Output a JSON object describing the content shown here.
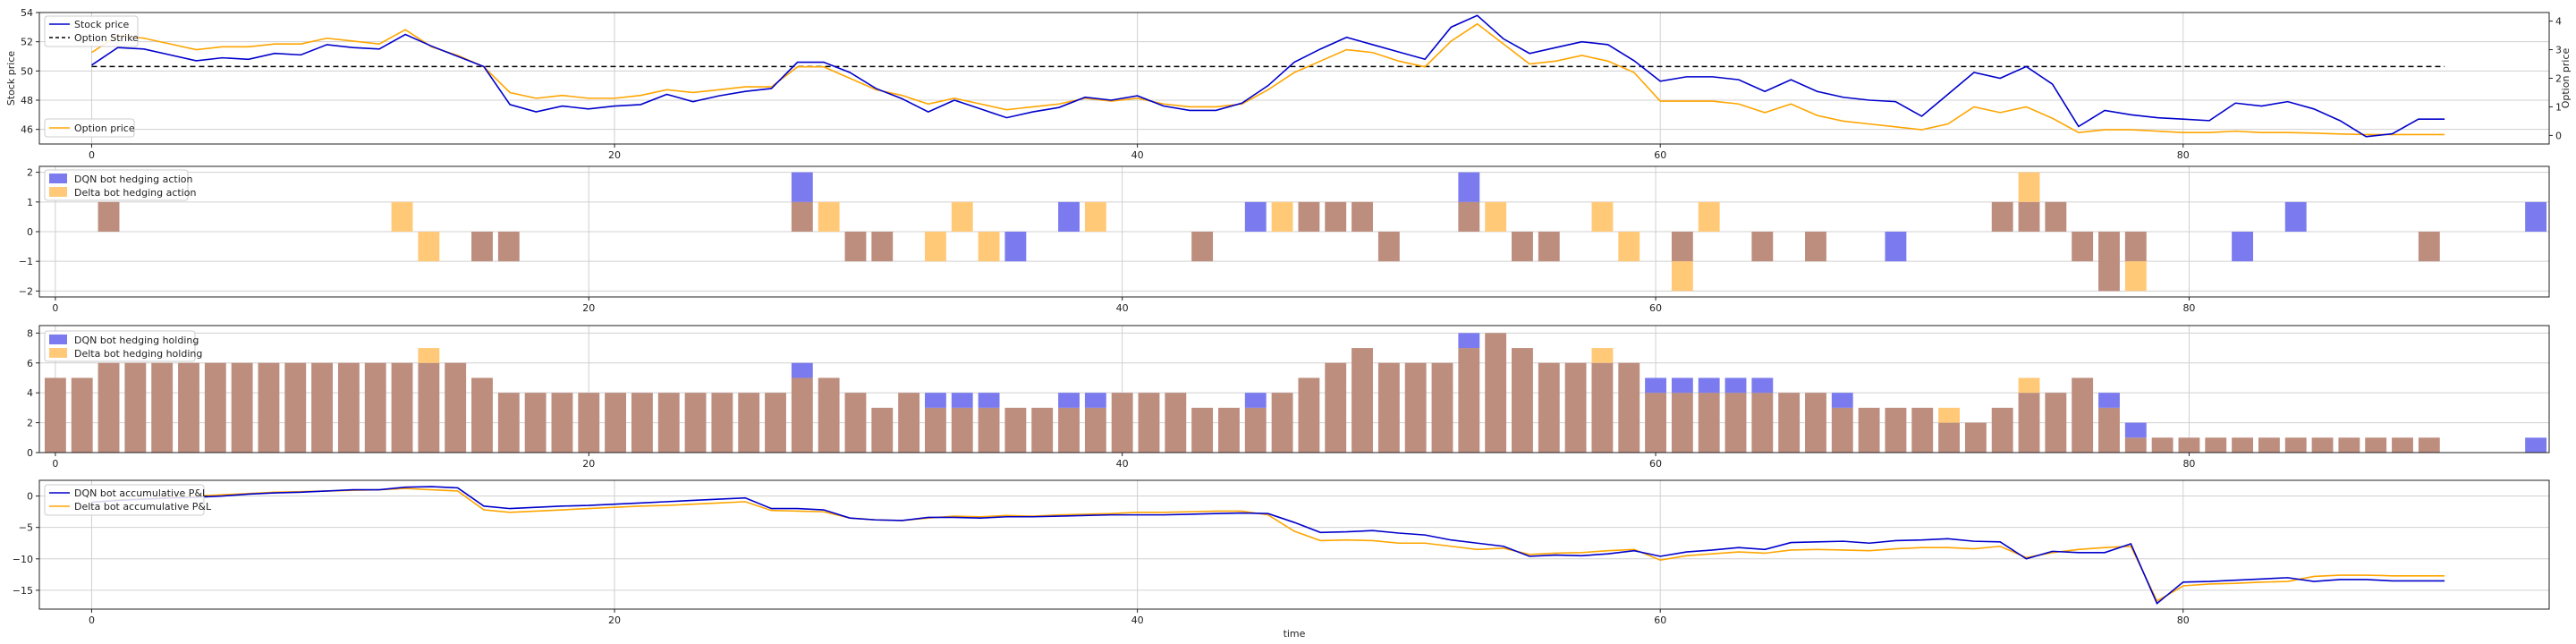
{
  "colors": {
    "dqn": "#0000cc",
    "delta": "#ffa500",
    "dqn_bar": "#7b7bef",
    "delta_bar": "#ffc978",
    "overlap_bar": "#bd8d7d",
    "strike": "#000000",
    "grid": "#d0d0d0"
  },
  "chart_data": [
    {
      "type": "line",
      "xlim": [
        -2,
        94
      ],
      "ylim": [
        45,
        54
      ],
      "y2lim": [
        -0.3,
        4.3
      ],
      "xticks": [
        0,
        20,
        40,
        60,
        80
      ],
      "yticks": [
        46,
        48,
        50,
        52,
        54
      ],
      "y2ticks": [
        0,
        1,
        2,
        3,
        4
      ],
      "xtick_labels": [
        "0",
        "20",
        "40",
        "60",
        "80"
      ],
      "ytick_labels": [
        "46",
        "48",
        "50",
        "52",
        "54"
      ],
      "y2tick_labels": [
        "0",
        "1",
        "2",
        "3",
        "4"
      ],
      "ylabel": "Stock price",
      "y2label": "Option price",
      "grid": true,
      "strike": 50.3,
      "x": [
        0,
        1,
        2,
        3,
        4,
        5,
        6,
        7,
        8,
        9,
        10,
        11,
        12,
        13,
        14,
        15,
        16,
        17,
        18,
        19,
        20,
        21,
        22,
        23,
        24,
        25,
        26,
        27,
        28,
        29,
        30,
        31,
        32,
        33,
        34,
        35,
        36,
        37,
        38,
        39,
        40,
        41,
        42,
        43,
        44,
        45,
        46,
        47,
        48,
        49,
        50,
        51,
        52,
        53,
        54,
        55,
        56,
        57,
        58,
        59,
        60,
        61,
        62,
        63,
        64,
        65,
        66,
        67,
        68,
        69,
        70,
        71,
        72,
        73,
        74,
        75,
        76,
        77,
        78,
        79,
        80,
        81,
        82,
        83,
        84,
        85,
        86,
        87,
        88,
        89,
        90
      ],
      "stock": [
        50.4,
        51.6,
        51.5,
        51.1,
        50.7,
        50.9,
        50.8,
        51.2,
        51.1,
        51.8,
        51.6,
        51.5,
        52.5,
        51.7,
        51.0,
        50.3,
        47.7,
        47.2,
        47.6,
        47.4,
        47.6,
        47.7,
        48.4,
        47.9,
        48.3,
        48.6,
        48.8,
        50.6,
        50.6,
        49.9,
        48.8,
        48.1,
        47.2,
        48.0,
        47.4,
        46.8,
        47.2,
        47.5,
        48.2,
        48.0,
        48.3,
        47.6,
        47.3,
        47.3,
        47.8,
        49.0,
        50.6,
        51.5,
        52.3,
        51.8,
        51.3,
        50.8,
        53.0,
        53.8,
        52.2,
        51.2,
        51.6,
        52.0,
        51.8,
        50.7,
        49.3,
        49.6,
        49.6,
        49.4,
        48.6,
        49.4,
        48.6,
        48.2,
        48.0,
        47.9,
        46.9,
        48.4,
        49.9,
        49.5,
        50.3,
        49.1,
        46.2,
        47.3,
        47.0,
        46.8,
        46.7,
        46.6,
        47.8,
        47.6,
        47.9,
        47.4,
        46.6,
        45.5,
        45.7,
        46.7,
        46.7
      ],
      "option": [
        2.9,
        3.5,
        3.4,
        3.2,
        3.0,
        3.1,
        3.1,
        3.2,
        3.2,
        3.4,
        3.3,
        3.2,
        3.7,
        3.1,
        2.8,
        2.4,
        1.5,
        1.3,
        1.4,
        1.3,
        1.3,
        1.4,
        1.6,
        1.5,
        1.6,
        1.7,
        1.7,
        2.4,
        2.4,
        2.0,
        1.6,
        1.4,
        1.1,
        1.3,
        1.1,
        0.9,
        1.0,
        1.1,
        1.3,
        1.2,
        1.3,
        1.1,
        1.0,
        1.0,
        1.1,
        1.6,
        2.2,
        2.6,
        3.0,
        2.9,
        2.6,
        2.4,
        3.3,
        3.9,
        3.2,
        2.5,
        2.6,
        2.8,
        2.6,
        2.2,
        1.2,
        1.2,
        1.2,
        1.1,
        0.8,
        1.1,
        0.7,
        0.5,
        0.4,
        0.3,
        0.2,
        0.4,
        1.0,
        0.8,
        1.0,
        0.6,
        0.1,
        0.2,
        0.2,
        0.15,
        0.1,
        0.1,
        0.15,
        0.1,
        0.1,
        0.08,
        0.05,
        0.03,
        0.03,
        0.03,
        0.03
      ],
      "legend_top": [
        {
          "label": "Stock price",
          "key": "stock"
        },
        {
          "label": "Option Strike",
          "key": "strike"
        }
      ],
      "legend_bottom": [
        {
          "label": "Option price",
          "key": "option"
        }
      ]
    },
    {
      "type": "bar",
      "xlim": [
        -0.6,
        93.5
      ],
      "ylim": [
        -2.2,
        2.2
      ],
      "xticks": [
        0,
        20,
        40,
        60,
        80
      ],
      "yticks": [
        -2,
        -1,
        0,
        1,
        2
      ],
      "xtick_labels": [
        "0",
        "20",
        "40",
        "60",
        "80"
      ],
      "ytick_labels": [
        "−2",
        "−1",
        "0",
        "1",
        "2"
      ],
      "grid": true,
      "x": [
        0,
        1,
        2,
        3,
        4,
        5,
        6,
        7,
        8,
        9,
        10,
        11,
        12,
        13,
        14,
        15,
        16,
        17,
        18,
        19,
        20,
        21,
        22,
        23,
        24,
        25,
        26,
        27,
        28,
        29,
        30,
        31,
        32,
        33,
        34,
        35,
        36,
        37,
        38,
        39,
        40,
        41,
        42,
        43,
        44,
        45,
        46,
        47,
        48,
        49,
        50,
        51,
        52,
        53,
        54,
        55,
        56,
        57,
        58,
        59,
        60,
        61,
        62,
        63,
        64,
        65,
        66,
        67,
        68,
        69,
        70,
        71,
        72,
        73,
        74,
        75,
        76,
        77,
        78,
        79,
        80,
        81,
        82,
        83,
        84,
        85,
        86,
        87,
        88,
        89,
        90,
        91,
        92,
        93
      ],
      "dqn": [
        0,
        0,
        1,
        0,
        0,
        0,
        0,
        0,
        0,
        0,
        0,
        0,
        0,
        0,
        0,
        0,
        -1,
        -1,
        0,
        0,
        0,
        0,
        0,
        0,
        0,
        0,
        0,
        0,
        2,
        0,
        -1,
        -1,
        0,
        0,
        0,
        0,
        -1,
        0,
        1,
        0,
        0,
        0,
        0,
        -1,
        0,
        1,
        0,
        1,
        1,
        1,
        -1,
        0,
        0,
        2,
        0,
        -1,
        -1,
        0,
        0,
        0,
        0,
        -1,
        0,
        0,
        -1,
        0,
        -1,
        0,
        0,
        -1,
        0,
        0,
        0,
        1,
        1,
        1,
        -1,
        -2,
        -1,
        0,
        0,
        0,
        -1,
        0,
        1,
        0,
        0,
        0,
        0,
        -1,
        0,
        0,
        0,
        1
      ],
      "delta": [
        0,
        0,
        1,
        0,
        0,
        0,
        0,
        0,
        0,
        0,
        0,
        0,
        0,
        1,
        -1,
        0,
        -1,
        -1,
        0,
        0,
        0,
        0,
        0,
        0,
        0,
        0,
        0,
        0,
        1,
        1,
        -1,
        -1,
        0,
        -1,
        1,
        -1,
        0,
        0,
        0,
        1,
        0,
        0,
        0,
        -1,
        0,
        0,
        1,
        1,
        1,
        1,
        -1,
        0,
        0,
        1,
        1,
        -1,
        -1,
        0,
        1,
        -1,
        0,
        -2,
        1,
        0,
        -1,
        0,
        -1,
        0,
        0,
        0,
        0,
        0,
        0,
        1,
        2,
        1,
        -1,
        -2,
        -2,
        0,
        0,
        0,
        0,
        0,
        0,
        0,
        0,
        0,
        0,
        -1,
        0,
        0,
        0,
        0
      ],
      "legend": [
        {
          "label": "DQN bot hedging action",
          "key": "dqn"
        },
        {
          "label": "Delta bot hedging action",
          "key": "delta"
        }
      ]
    },
    {
      "type": "bar",
      "xlim": [
        -0.6,
        93.5
      ],
      "ylim": [
        0,
        8.5
      ],
      "xticks": [
        0,
        20,
        40,
        60,
        80
      ],
      "yticks": [
        0,
        2,
        4,
        6,
        8
      ],
      "xtick_labels": [
        "0",
        "20",
        "40",
        "60",
        "80"
      ],
      "ytick_labels": [
        "0",
        "2",
        "4",
        "6",
        "8"
      ],
      "grid": true,
      "x": [
        0,
        1,
        2,
        3,
        4,
        5,
        6,
        7,
        8,
        9,
        10,
        11,
        12,
        13,
        14,
        15,
        16,
        17,
        18,
        19,
        20,
        21,
        22,
        23,
        24,
        25,
        26,
        27,
        28,
        29,
        30,
        31,
        32,
        33,
        34,
        35,
        36,
        37,
        38,
        39,
        40,
        41,
        42,
        43,
        44,
        45,
        46,
        47,
        48,
        49,
        50,
        51,
        52,
        53,
        54,
        55,
        56,
        57,
        58,
        59,
        60,
        61,
        62,
        63,
        64,
        65,
        66,
        67,
        68,
        69,
        70,
        71,
        72,
        73,
        74,
        75,
        76,
        77,
        78,
        79,
        80,
        81,
        82,
        83,
        84,
        85,
        86,
        87,
        88,
        89,
        90,
        91,
        92,
        93
      ],
      "dqn": [
        5,
        5,
        6,
        6,
        6,
        6,
        6,
        6,
        6,
        6,
        6,
        6,
        6,
        6,
        6,
        6,
        5,
        4,
        4,
        4,
        4,
        4,
        4,
        4,
        4,
        4,
        4,
        4,
        6,
        5,
        4,
        3,
        4,
        4,
        4,
        4,
        3,
        3,
        4,
        4,
        4,
        4,
        4,
        3,
        3,
        4,
        4,
        5,
        6,
        7,
        6,
        6,
        6,
        8,
        8,
        7,
        6,
        6,
        6,
        6,
        5,
        5,
        5,
        5,
        5,
        4,
        4,
        4,
        3,
        3,
        3,
        2,
        2,
        3,
        4,
        4,
        5,
        4,
        2,
        1,
        1,
        1,
        1,
        1,
        1,
        1,
        1,
        1,
        1,
        1,
        0,
        0,
        0,
        1
      ],
      "delta": [
        5,
        5,
        6,
        6,
        6,
        6,
        6,
        6,
        6,
        6,
        6,
        6,
        6,
        6,
        7,
        6,
        5,
        4,
        4,
        4,
        4,
        4,
        4,
        4,
        4,
        4,
        4,
        4,
        5,
        5,
        4,
        3,
        4,
        3,
        3,
        3,
        3,
        3,
        3,
        3,
        4,
        4,
        4,
        3,
        3,
        3,
        4,
        5,
        6,
        7,
        6,
        6,
        6,
        7,
        8,
        7,
        6,
        6,
        7,
        6,
        4,
        4,
        4,
        4,
        4,
        4,
        4,
        3,
        3,
        3,
        3,
        3,
        2,
        3,
        5,
        4,
        5,
        3,
        1,
        1,
        1,
        1,
        1,
        1,
        1,
        1,
        1,
        1,
        1,
        1,
        0,
        0,
        0,
        0
      ],
      "legend": [
        {
          "label": "DQN bot hedging holding",
          "key": "dqn"
        },
        {
          "label": "Delta bot hedging holding",
          "key": "delta"
        }
      ]
    },
    {
      "type": "line",
      "xlim": [
        -2,
        94
      ],
      "ylim": [
        -18,
        2.5
      ],
      "xticks": [
        0,
        20,
        40,
        60,
        80
      ],
      "yticks": [
        0,
        -5,
        -10,
        -15
      ],
      "xtick_labels": [
        "0",
        "20",
        "40",
        "60",
        "80"
      ],
      "ytick_labels": [
        "0",
        "−5",
        "−10",
        "−15"
      ],
      "xlabel": "time",
      "grid": true,
      "x": [
        0,
        1,
        2,
        3,
        4,
        5,
        6,
        7,
        8,
        9,
        10,
        11,
        12,
        13,
        14,
        15,
        16,
        17,
        18,
        19,
        20,
        21,
        22,
        23,
        24,
        25,
        26,
        27,
        28,
        29,
        30,
        31,
        32,
        33,
        34,
        35,
        36,
        37,
        38,
        39,
        40,
        41,
        42,
        43,
        44,
        45,
        46,
        47,
        48,
        49,
        50,
        51,
        52,
        53,
        54,
        55,
        56,
        57,
        58,
        59,
        60,
        61,
        62,
        63,
        64,
        65,
        66,
        67,
        68,
        69,
        70,
        71,
        72,
        73,
        74,
        75,
        76,
        77,
        78,
        79,
        80,
        81,
        82,
        83,
        84,
        85,
        86,
        87,
        88,
        89,
        90
      ],
      "dqn": [
        -1.0,
        -0.7,
        -0.5,
        -0.3,
        -0.2,
        0.0,
        0.3,
        0.5,
        0.6,
        0.8,
        1.0,
        1.0,
        1.4,
        1.5,
        1.3,
        -1.6,
        -2.0,
        -1.8,
        -1.6,
        -1.5,
        -1.3,
        -1.1,
        -0.9,
        -0.7,
        -0.5,
        -0.3,
        -2.0,
        -2.0,
        -2.2,
        -3.5,
        -3.8,
        -3.9,
        -3.4,
        -3.4,
        -3.5,
        -3.3,
        -3.3,
        -3.2,
        -3.1,
        -3.0,
        -3.0,
        -3.0,
        -2.9,
        -2.8,
        -2.7,
        -2.8,
        -4.2,
        -5.8,
        -5.7,
        -5.5,
        -5.9,
        -6.2,
        -7.0,
        -7.5,
        -8.0,
        -9.6,
        -9.4,
        -9.5,
        -9.2,
        -8.7,
        -9.6,
        -8.9,
        -8.6,
        -8.2,
        -8.5,
        -7.4,
        -7.3,
        -7.2,
        -7.5,
        -7.1,
        -7.0,
        -6.8,
        -7.2,
        -7.3,
        -10.0,
        -8.8,
        -9.0,
        -9.0,
        -7.6,
        -17.1,
        -13.7,
        -13.6,
        -13.4,
        -13.2,
        -13.0,
        -13.6,
        -13.3,
        -13.3,
        -13.5,
        -13.5,
        -13.5
      ],
      "delta": [
        -1.0,
        -0.6,
        -0.4,
        -0.2,
        0.0,
        0.2,
        0.4,
        0.6,
        0.7,
        0.8,
        0.9,
        1.0,
        1.2,
        1.0,
        0.8,
        -2.2,
        -2.6,
        -2.4,
        -2.2,
        -2.0,
        -1.8,
        -1.6,
        -1.5,
        -1.3,
        -1.1,
        -0.9,
        -2.3,
        -2.4,
        -2.5,
        -3.5,
        -3.8,
        -3.9,
        -3.5,
        -3.2,
        -3.3,
        -3.1,
        -3.2,
        -3.0,
        -2.9,
        -2.8,
        -2.6,
        -2.6,
        -2.5,
        -2.4,
        -2.4,
        -3.0,
        -5.6,
        -7.1,
        -7.0,
        -7.1,
        -7.5,
        -7.5,
        -8.0,
        -8.5,
        -8.3,
        -9.3,
        -9.1,
        -9.0,
        -8.7,
        -8.5,
        -10.2,
        -9.5,
        -9.2,
        -8.9,
        -9.1,
        -8.6,
        -8.5,
        -8.6,
        -8.7,
        -8.4,
        -8.2,
        -8.2,
        -8.4,
        -8.0,
        -9.8,
        -9.0,
        -8.5,
        -8.2,
        -8.0,
        -16.7,
        -14.3,
        -14.0,
        -13.9,
        -13.7,
        -13.6,
        -12.8,
        -12.6,
        -12.6,
        -12.7,
        -12.7,
        -12.7
      ],
      "legend": [
        {
          "label": "DQN bot accumulative P&L",
          "key": "dqn"
        },
        {
          "label": "Delta bot accumulative P&L",
          "key": "delta"
        }
      ]
    }
  ]
}
